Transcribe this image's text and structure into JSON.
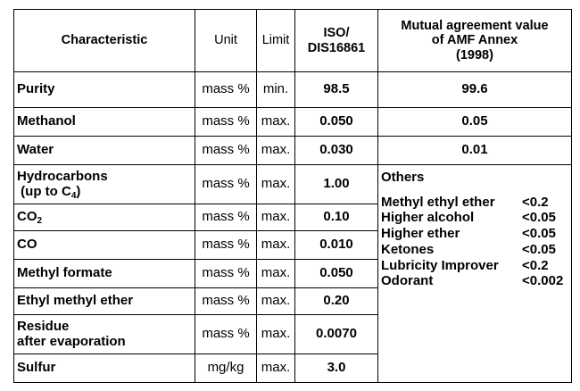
{
  "table": {
    "header": {
      "characteristic": "Characteristic",
      "unit": "Unit",
      "limit": "Limit",
      "iso": [
        "ISO/",
        "DIS16861"
      ],
      "mutual": [
        "Mutual agreement value",
        "of AMF Annex",
        "(1998)"
      ]
    },
    "rows": [
      {
        "characteristic": [
          [
            "Purity"
          ]
        ],
        "unit": "mass %",
        "limit": "min.",
        "iso": "98.5",
        "mutual": "99.6"
      },
      {
        "characteristic": [
          [
            "Methanol"
          ]
        ],
        "unit": "mass %",
        "limit": "max.",
        "iso": "0.050",
        "mutual": "0.05"
      },
      {
        "characteristic": [
          [
            "Water"
          ]
        ],
        "unit": "mass %",
        "limit": "max.",
        "iso": "0.030",
        "mutual": "0.01"
      },
      {
        "characteristic": [
          [
            "Hydrocarbons"
          ],
          [
            " (up to C",
            {
              "sub": "4"
            },
            ")"
          ]
        ],
        "unit": "mass %",
        "limit": "max.",
        "iso": "1.00"
      },
      {
        "characteristic": [
          [
            "CO",
            {
              "sub": "2"
            }
          ]
        ],
        "unit": "mass %",
        "limit": "max.",
        "iso": "0.10"
      },
      {
        "characteristic": [
          [
            "CO"
          ]
        ],
        "unit": "mass %",
        "limit": "max.",
        "iso": "0.010"
      },
      {
        "characteristic": [
          [
            "Methyl formate"
          ]
        ],
        "unit": "mass %",
        "limit": "max.",
        "iso": "0.050"
      },
      {
        "characteristic": [
          [
            "Ethyl methyl ether"
          ]
        ],
        "unit": "mass %",
        "limit": "max.",
        "iso": "0.20"
      },
      {
        "characteristic": [
          [
            "Residue"
          ],
          [
            "after evaporation"
          ]
        ],
        "unit": "mass %",
        "limit": "max.",
        "iso": "0.0070"
      },
      {
        "characteristic": [
          [
            "Sulfur"
          ]
        ],
        "unit": "mg/kg",
        "limit": "max.",
        "iso": "3.0"
      }
    ],
    "others": {
      "title": "Others",
      "items": [
        {
          "name": "Methyl ethyl ether",
          "value": "<0.2"
        },
        {
          "name": "Higher alcohol",
          "value": "<0.05"
        },
        {
          "name": "Higher ether",
          "value": "<0.05"
        },
        {
          "name": "Ketones",
          "value": "<0.05"
        },
        {
          "name": "Lubricity Improver",
          "value": "<0.2"
        },
        {
          "name": "Odorant",
          "value": "<0.002"
        }
      ]
    }
  }
}
